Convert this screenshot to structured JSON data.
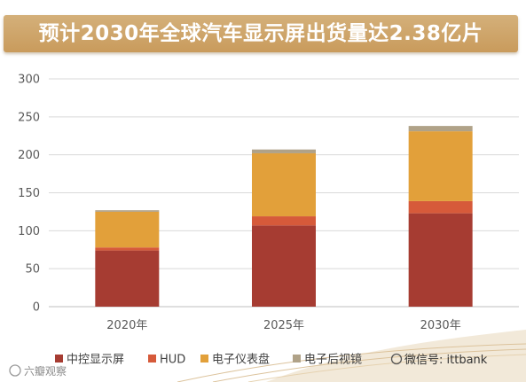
{
  "title": "预计2030年全球汽车显示屏出货量达2.38亿片",
  "colors": {
    "title_bg": "#cfa466",
    "center_display": "#a63c32",
    "hud": "#d65a3a",
    "cluster": "#e2a03a",
    "rear_mirror": "#b0a288"
  },
  "chart_data": {
    "type": "bar",
    "stacked": true,
    "categories": [
      "2020年",
      "2025年",
      "2030年"
    ],
    "series": [
      {
        "name": "中控显示屏",
        "values": [
          74,
          107,
          123
        ],
        "color": "#a63c32"
      },
      {
        "name": "HUD",
        "values": [
          4,
          12,
          16
        ],
        "color": "#d65a3a"
      },
      {
        "name": "电子仪表盘",
        "values": [
          47,
          83,
          92
        ],
        "color": "#e2a03a"
      },
      {
        "name": "电子后视镜",
        "values": [
          2,
          5,
          7
        ],
        "color": "#b0a288"
      }
    ],
    "ylim": [
      0,
      300
    ],
    "yticks": [
      0,
      50,
      100,
      150,
      200,
      250,
      300
    ],
    "grid": true,
    "legend_position": "bottom"
  },
  "watermark": {
    "left_text": "六瓣观察",
    "right_text": "微信号: ittbank"
  }
}
